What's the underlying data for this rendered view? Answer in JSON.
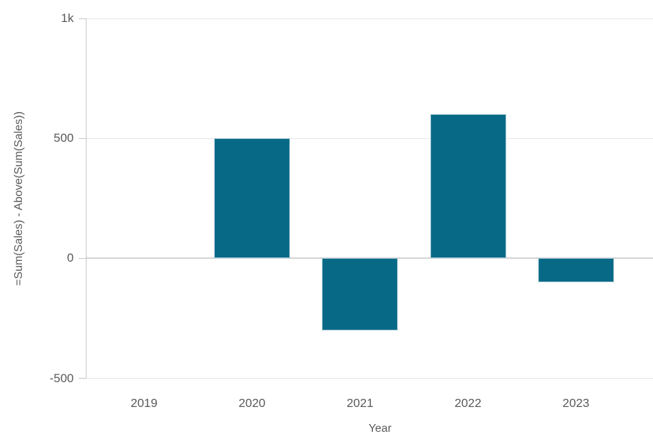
{
  "chart_data": {
    "type": "bar",
    "title": "",
    "xlabel": "Year",
    "ylabel": "=Sum(Sales) - Above(Sum(Sales))",
    "categories": [
      "2019",
      "2020",
      "2021",
      "2022",
      "2023"
    ],
    "values": [
      null,
      500,
      -300,
      600,
      -100
    ],
    "ylim": [
      -500,
      1000
    ],
    "yticks": [
      {
        "value": -500,
        "label": "-500"
      },
      {
        "value": 0,
        "label": "0"
      },
      {
        "value": 500,
        "label": "500"
      },
      {
        "value": 1000,
        "label": "1k"
      }
    ],
    "grid": true,
    "legend": false,
    "colors": {
      "bar": "#086987",
      "bar_border": "#9fc2d0",
      "grid": "#e6e6e6",
      "zero_line": "#d4d4d4",
      "axis": "#c7c7c7",
      "text": "#595959"
    }
  }
}
